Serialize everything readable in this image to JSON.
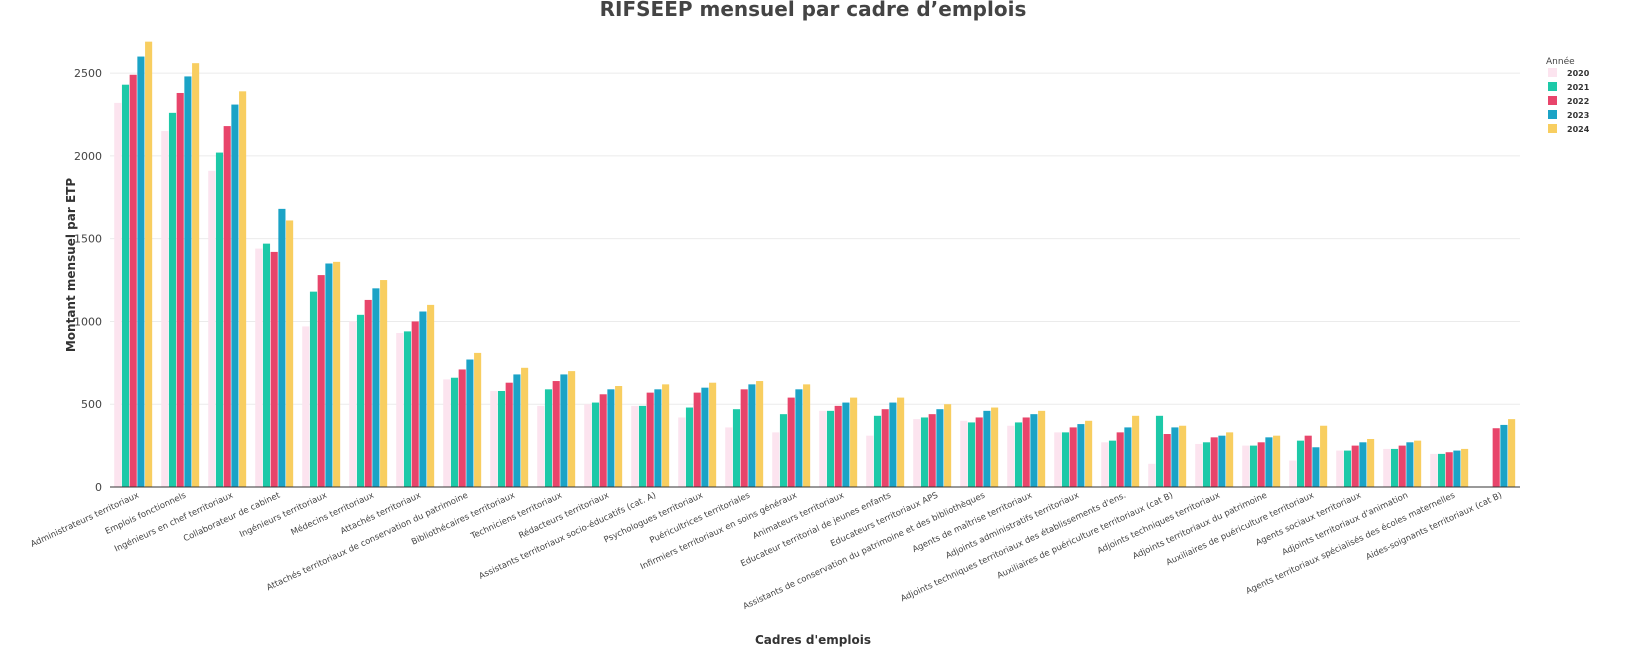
{
  "chart_data": {
    "type": "bar",
    "title": "RIFSEEP mensuel par cadre d’emplois",
    "xlabel": "Cadres d'emplois",
    "ylabel": "Montant mensuel par ETP",
    "ylim": [
      0,
      2700
    ],
    "yticks": [
      0,
      500,
      1000,
      1500,
      2000,
      2500
    ],
    "yticks_text": [
      "0",
      "500",
      "1000",
      "1500",
      "2000",
      "2500"
    ],
    "grid": true,
    "legend": {
      "title": "Année",
      "position": "top-right"
    },
    "categories": [
      "Administrateurs territoriaux",
      "Emplois fonctionnels",
      "Ingénieurs en chef territoriaux",
      "Collaborateur de cabinet",
      "Ingénieurs territoriaux",
      "Médecins territoriaux",
      "Attachés territoriaux",
      "Attachés territoriaux de conservation du patrimoine",
      "Bibliothécaires territoriaux",
      "Techniciens territoriaux",
      "Rédacteurs territoriaux",
      "Assistants territoriaux socio-éducatifs (cat. A)",
      "Psychologues territoriaux",
      "Puéricultrices territoriales",
      "Infirmiers territoriaux en soins généraux",
      "Animateurs territoriaux",
      "Educateur territorial de jeunes enfants",
      "Educateurs territoriaux APS",
      "Assistants de conservation du patrimoine et des bibliothèques",
      "Agents de maîtrise territoriaux",
      "Adjoints administratifs territoriaux",
      "Adjoints techniques territoriaux des établissements d'ens.",
      "Auxiliaires de puériculture territoriaux (cat B)",
      "Adjoints techniques territoriaux",
      "Adjoints territoriaux du patrimoine",
      "Auxiliaires de puériculture territoriaux",
      "Agents sociaux territoriaux",
      "Adjoints territoriaux d'animation",
      "Agents territoriaux spécialisés des écoles maternelles",
      "Aides-soignants territoriaux (cat B)"
    ],
    "series": [
      {
        "name": "2020",
        "color": "#fce4ef",
        "values": [
          2320,
          2150,
          1910,
          1440,
          970,
          1000,
          930,
          650,
          580,
          490,
          500,
          490,
          420,
          360,
          330,
          460,
          310,
          410,
          400,
          370,
          330,
          270,
          140,
          260,
          250,
          160,
          220,
          230,
          200,
          0
        ]
      },
      {
        "name": "2021",
        "color": "#1dc9a8",
        "values": [
          2430,
          2260,
          2020,
          1470,
          1180,
          1040,
          940,
          660,
          580,
          590,
          510,
          490,
          480,
          470,
          440,
          460,
          430,
          420,
          390,
          390,
          330,
          280,
          430,
          270,
          250,
          280,
          220,
          230,
          200,
          0
        ]
      },
      {
        "name": "2022",
        "color": "#e8456b",
        "values": [
          2490,
          2380,
          2180,
          1420,
          1280,
          1130,
          1000,
          710,
          630,
          640,
          560,
          570,
          570,
          590,
          540,
          490,
          470,
          440,
          420,
          420,
          360,
          330,
          320,
          300,
          270,
          310,
          250,
          250,
          210,
          355
        ]
      },
      {
        "name": "2023",
        "color": "#1ba3c6",
        "values": [
          2600,
          2480,
          2310,
          1680,
          1350,
          1200,
          1060,
          770,
          680,
          680,
          590,
          590,
          600,
          620,
          590,
          510,
          510,
          470,
          460,
          440,
          380,
          360,
          360,
          310,
          300,
          240,
          270,
          270,
          220,
          375
        ]
      },
      {
        "name": "2024",
        "color": "#f8ce60",
        "values": [
          2690,
          2560,
          2390,
          1610,
          1360,
          1250,
          1100,
          810,
          720,
          700,
          610,
          620,
          630,
          640,
          620,
          540,
          540,
          500,
          480,
          460,
          400,
          430,
          370,
          330,
          310,
          370,
          290,
          280,
          230,
          410
        ]
      }
    ]
  }
}
